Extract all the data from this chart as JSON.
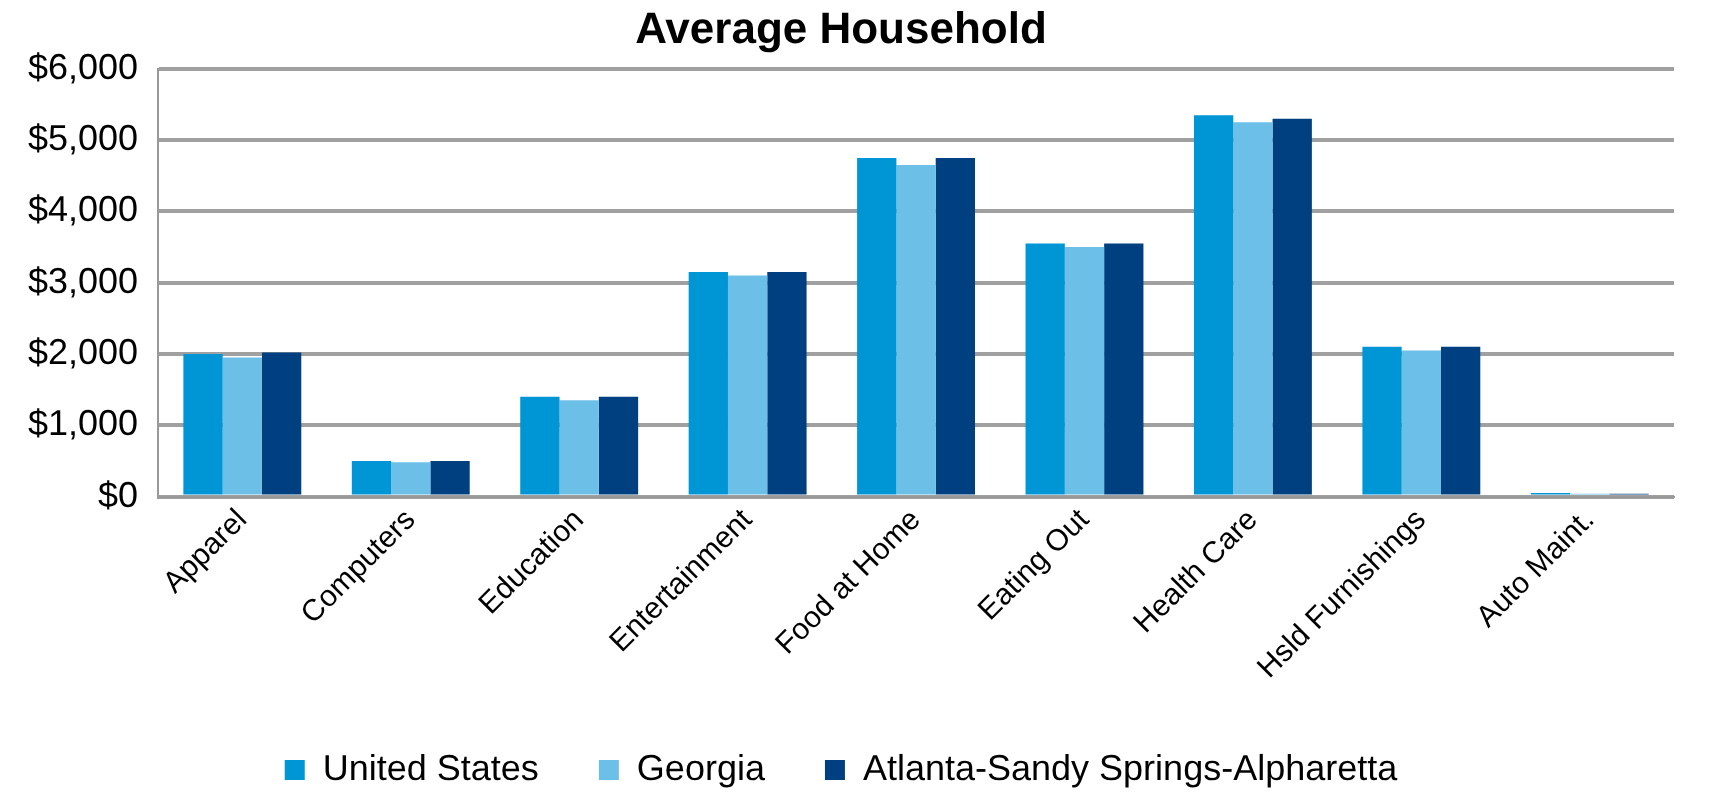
{
  "chart_data": {
    "type": "bar",
    "title": "Average Household",
    "categories": [
      "Apparel",
      "Computers",
      "Education",
      "Entertainment",
      "Food at Home",
      "Eating Out",
      "Health Care",
      "Hsld Furnishings",
      "Auto Maint."
    ],
    "series": [
      {
        "name": "United States",
        "color": "#0095d5",
        "values": [
          2000,
          500,
          1400,
          3150,
          4750,
          3550,
          5350,
          2100,
          50
        ]
      },
      {
        "name": "Georgia",
        "color": "#6cc0e8",
        "values": [
          1950,
          480,
          1350,
          3100,
          4650,
          3500,
          5250,
          2050,
          40
        ]
      },
      {
        "name": "Atlanta-Sandy Springs-Alpharetta",
        "color": "#004080",
        "values": [
          2020,
          500,
          1400,
          3150,
          4750,
          3550,
          5300,
          2100,
          40
        ]
      }
    ],
    "ylim": [
      0,
      6000
    ],
    "yticks": [
      {
        "value": 0,
        "label": "$0"
      },
      {
        "value": 1000,
        "label": "$1,000"
      },
      {
        "value": 2000,
        "label": "$2,000"
      },
      {
        "value": 3000,
        "label": "$3,000"
      },
      {
        "value": 4000,
        "label": "$4,000"
      },
      {
        "value": 5000,
        "label": "$5,000"
      },
      {
        "value": 6000,
        "label": "$6,000"
      }
    ],
    "grid": "y",
    "legend": "bottom"
  }
}
